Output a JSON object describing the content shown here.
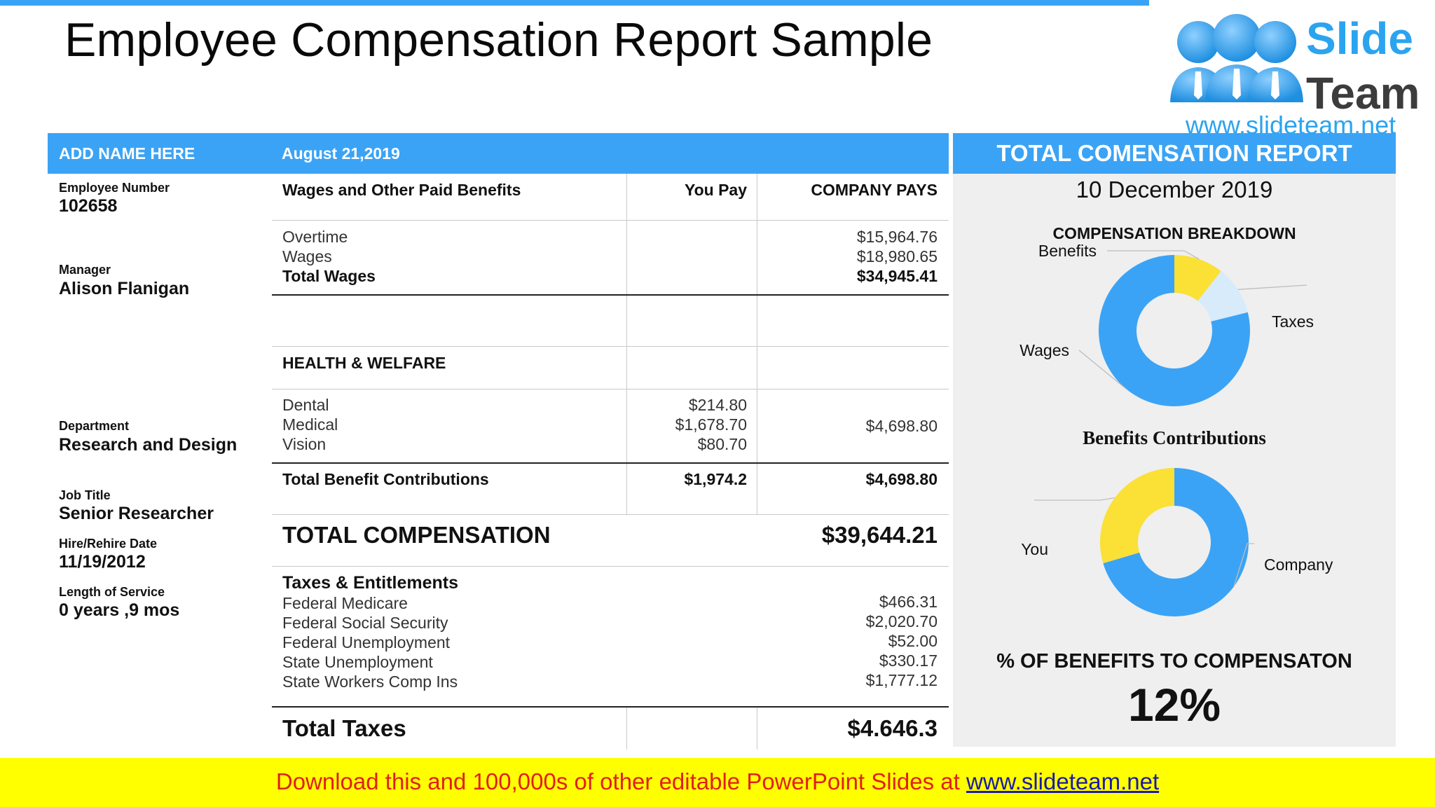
{
  "title": "Employee Compensation Report Sample",
  "logo": {
    "word1": "Slide",
    "word2": "Team",
    "url": "www.slideteam.net"
  },
  "header": {
    "name": "ADD NAME HERE",
    "date": "August 21,2019"
  },
  "employee": {
    "number_label": "Employee Number",
    "number": "102658",
    "manager_label": "Manager",
    "manager": "Alison Flanigan",
    "department_label": "Department",
    "department": "Research and Design",
    "job_title_label": "Job Title",
    "job_title": "Senior Researcher",
    "hire_label": "Hire/Rehire Date",
    "hire_date": "11/19/2012",
    "service_label": "Length of Service",
    "service": "0 years ,9 mos"
  },
  "table": {
    "col_benefits": "Wages and Other Paid Benefits",
    "col_you_pay": "You Pay",
    "col_company_pays": "COMPANY PAYS",
    "wages": {
      "overtime": "Overtime",
      "overtime_company": "$15,964.76",
      "wages": "Wages",
      "wages_company": "$18,980.65",
      "total": "Total Wages",
      "total_company": "$34,945.41"
    },
    "health": {
      "heading": "HEALTH & WELFARE",
      "dental": "Dental",
      "dental_you": "$214.80",
      "medical": "Medical",
      "medical_you": "$1,678.70",
      "vision": "Vision",
      "vision_you": "$80.70",
      "company": "$4,698.80"
    },
    "total_benefit": {
      "label": "Total Benefit Contributions",
      "you": "$1,974.2",
      "company": "$4,698.80"
    },
    "total_comp": {
      "label": "TOTAL COMPENSATION",
      "value": "$39,644.21"
    },
    "taxes": {
      "heading": "Taxes & Entitlements",
      "items": [
        {
          "label": "Federal Medicare",
          "value": "$466.31"
        },
        {
          "label": "Federal Social Security",
          "value": "$2,020.70"
        },
        {
          "label": "Federal Unemployment",
          "value": "$52.00"
        },
        {
          "label": "State Unemployment",
          "value": "$330.17"
        },
        {
          "label": "State Workers Comp Ins",
          "value": "$1,777.12"
        }
      ]
    },
    "total_taxes": {
      "label": "Total Taxes",
      "value": "$4.646.3"
    }
  },
  "panel": {
    "title": "TOTAL COMENSATION REPORT",
    "date": "10 December 2019",
    "breakdown_title": "COMPENSATION BREAKDOWN",
    "benefits_title": "Benefits Contributions",
    "pct_label": "% OF BENEFITS TO COMPENSATON",
    "pct_value": "12%"
  },
  "chart_data": [
    {
      "type": "pie",
      "title": "COMPENSATION BREAKDOWN",
      "categories": [
        "Benefits",
        "Taxes",
        "Wages"
      ],
      "values": [
        4698.8,
        4646.3,
        34945.41
      ],
      "colors": [
        "#fbe036",
        "#d7ebfb",
        "#3ba3f5"
      ]
    },
    {
      "type": "pie",
      "title": "Benefits Contributions",
      "categories": [
        "Company",
        "You"
      ],
      "values": [
        4698.8,
        1974.2
      ],
      "colors": [
        "#3ba3f5",
        "#fbe036"
      ]
    }
  ],
  "footer": {
    "text": "Download this and 100,000s of other editable PowerPoint Slides at ",
    "link": "www.slideteam.net"
  },
  "colors": {
    "accent": "#3ba3f5",
    "yellow": "#fbe036",
    "footer_bg": "#ffff00",
    "footer_text": "#e0201c"
  }
}
